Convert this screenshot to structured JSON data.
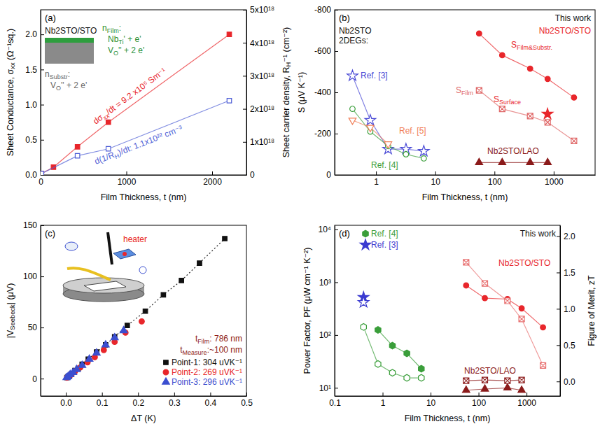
{
  "chart_data": [
    {
      "type": "scatter",
      "title": "(a)",
      "x_label": "Film Thickness, t (nm)",
      "y_label": {
        "text": "Sheet Conductance, σ",
        "sub": "xx",
        "tail": " (Ω⁻¹sq.)"
      },
      "y2_label": {
        "text": "Sheet carrier density, R",
        "sub": "H",
        "tail": "⁻¹ (cm⁻²)"
      },
      "xlim": [
        0,
        2400
      ],
      "xticks": [
        0,
        1000,
        2000
      ],
      "ylim": [
        0,
        2.35
      ],
      "yticks": [
        {
          "value": 0,
          "label": "0.0"
        },
        0.5,
        {
          "value": 1,
          "label": "1.0"
        },
        1.5,
        {
          "value": 2,
          "label": "2.0"
        }
      ],
      "y2lim": [
        0,
        5e+18
      ],
      "y2ticks": [
        0,
        {
          "value": 1e+18,
          "label": "1x10¹⁸"
        },
        {
          "value": 2e+18,
          "label": "2x10¹⁸"
        },
        {
          "value": 3e+18,
          "label": "3x10¹⁸"
        },
        {
          "value": 4e+18,
          "label": "4x10¹⁸"
        },
        {
          "value": 5e+18,
          "label": "5x10¹⁸"
        }
      ],
      "series": [
        {
          "color": "#e8262b",
          "marker": "square",
          "line_style": "solid",
          "x": [
            10,
            150,
            430,
            790,
            2200
          ],
          "values": [
            0.02,
            0.11,
            0.4,
            0.75,
            2.0
          ]
        },
        {
          "color": "#4f5fd6",
          "marker": "open-square",
          "line_style": "solid",
          "axis": "y2",
          "x": [
            10,
            430,
            790,
            2200
          ],
          "values": [
            4e+16,
            5.8e+17,
            7.9e+17,
            2.25e+18
          ]
        }
      ],
      "annotations": [
        "Nb2STO/STO",
        {
          "text": "n",
          "sub": "Film",
          "tail": ":"
        },
        {
          "text": "Nb",
          "sub": "Ti",
          "tail": "' + e'"
        },
        {
          "text": "V",
          "sub": "O",
          "tail": "'' + 2 e'"
        },
        {
          "text": "n",
          "sub": "Substr",
          "tail": ":"
        },
        {
          "text": "V",
          "sub": "O",
          "tail": "'' + 2 e'"
        },
        {
          "text": "dσ",
          "sub": "xx",
          "tail": "/dt = 9.2 x10⁵ Sm⁻¹"
        },
        {
          "text": "d(1/R",
          "sub": "H",
          "tail": ")/dt: 1.1x10²² cm⁻³"
        }
      ]
    },
    {
      "type": "line",
      "title": "(b)",
      "log": "x",
      "x_label": "Film Thickness, t (nm)",
      "y_label": "S (μV K⁻¹)",
      "xlim": [
        0.2,
        5000
      ],
      "xticks": [
        1,
        10,
        100,
        1000
      ],
      "ylim": [
        0,
        -800
      ],
      "yticks": [
        -800,
        -600,
        -400,
        -200,
        0
      ],
      "series": [
        {
          "name": "Ref. [3]",
          "color": "#4b4bd6",
          "marker": "open-star",
          "line_style": "solid",
          "x": [
            0.4,
            0.8,
            1.6,
            3.2,
            6.4
          ],
          "values": [
            -480,
            -265,
            -125,
            -125,
            -115
          ]
        },
        {
          "name": "Ref. [4]",
          "color": "#3a9e3a",
          "marker": "open-circle",
          "line_style": "solid",
          "x": [
            0.4,
            0.8,
            1.6,
            3.2,
            6.4
          ],
          "values": [
            -320,
            -210,
            -140,
            -100,
            -80
          ]
        },
        {
          "name": "Ref. [5]",
          "color": "#f0805a",
          "marker": "open-triangle-down",
          "line_style": "solid",
          "x": [
            0.4,
            0.8,
            1.6
          ],
          "values": [
            -265,
            -230,
            -150
          ]
        },
        {
          "color": "#e8262b",
          "marker": "circle",
          "line_style": "solid",
          "x": [
            55,
            135,
            400,
            790,
            2200
          ],
          "values": [
            -685,
            -580,
            -515,
            -465,
            -375
          ]
        },
        {
          "color": "#e06868",
          "marker": "square-x",
          "line_style": "solid",
          "x": [
            55,
            135,
            400,
            790,
            2200
          ],
          "values": [
            -410,
            -320,
            -285,
            -255,
            -165
          ]
        },
        {
          "color": "#e8262b",
          "marker": "star",
          "line_style": "none",
          "x": [
            786
          ],
          "values": [
            -295
          ]
        },
        {
          "name": "Nb2STO/LAO",
          "color": "#8b1a1a",
          "marker": "triangle",
          "line_style": "solid",
          "x": [
            55,
            135,
            400,
            790
          ],
          "values": [
            -60,
            -60,
            -60,
            -60
          ]
        }
      ],
      "annotations": [
        "Nb2STO",
        "2DEGs:",
        "This work",
        "Nb2STO/STO",
        {
          "text": "S",
          "sub": "Film&Substr."
        },
        {
          "text": "S",
          "sub": "Film"
        },
        {
          "text": "S",
          "sub": "Surface"
        }
      ]
    },
    {
      "type": "scatter",
      "title": "(c)",
      "legend": "bottom-right",
      "x_label": "ΔT (K)",
      "y_label": {
        "text": "|V",
        "sub": "Seebeck",
        "tail": "| (μV)"
      },
      "xlim": [
        -0.07,
        0.5
      ],
      "xticks": [
        {
          "value": 0,
          "label": "0.0"
        },
        0.1,
        0.2,
        0.3,
        0.4,
        0.5
      ],
      "ylim": [
        -17,
        150
      ],
      "yticks": [
        0,
        50,
        100,
        150
      ],
      "series": [
        {
          "name": "Point-1: 304 uVK⁻¹",
          "color": "#111111",
          "marker": "square",
          "line_style": "dotted",
          "x": [
            0.003,
            0.006,
            0.01,
            0.016,
            0.025,
            0.034,
            0.045,
            0.062,
            0.085,
            0.11,
            0.135,
            0.17,
            0.22,
            0.27,
            0.32,
            0.37,
            0.44
          ],
          "values": [
            1,
            2,
            3,
            5,
            8,
            10,
            14,
            19,
            26,
            33,
            41,
            52,
            66,
            82,
            96,
            113,
            137
          ]
        },
        {
          "name": "Point-2: 269 uVK⁻¹",
          "color": "#e8262b",
          "marker": "circle",
          "x": [
            0.003,
            0.008,
            0.015,
            0.025,
            0.04,
            0.06,
            0.08,
            0.105,
            0.135,
            0.165,
            0.21
          ],
          "values": [
            1,
            2,
            4,
            7,
            11,
            16,
            21,
            28,
            36,
            45,
            56
          ]
        },
        {
          "name": "Point-3: 296 uVK⁻¹",
          "color": "#3b4fd0",
          "marker": "triangle",
          "x": [
            0.002,
            0.006,
            0.012,
            0.02,
            0.03,
            0.045,
            0.065,
            0.085,
            0.11,
            0.135,
            0.16
          ],
          "values": [
            1,
            2,
            4,
            6,
            9,
            13,
            19,
            25,
            33,
            40,
            47
          ]
        }
      ],
      "annotations": [
        {
          "text": "t",
          "sub": "Film",
          "tail": ": 786 nm"
        },
        {
          "text": "t",
          "sub": "Measure",
          "tail": ":~100 nm"
        },
        "heater"
      ]
    },
    {
      "type": "line",
      "title": "(d)",
      "log": true,
      "legend": "top-left",
      "x_label": "Film Thickness, t (nm)",
      "y_label": "Power Factor, PF (μW cm⁻¹ K⁻²)",
      "y2_label": "Figure of Merit, zT",
      "xlim": [
        0.1,
        5000
      ],
      "xticks": [
        0.1,
        1,
        10,
        100,
        1000
      ],
      "ylim": [
        7,
        12000
      ],
      "yticks": [
        {
          "value": 10,
          "label": "10¹"
        },
        {
          "value": 100,
          "label": "10²"
        },
        {
          "value": 1000,
          "label": "10³"
        },
        {
          "value": 10000,
          "label": "10⁴"
        }
      ],
      "y2lim": [
        -0.2,
        2.15
      ],
      "y2ticks": [
        {
          "value": 0,
          "label": "0.0"
        },
        0.5,
        {
          "value": 1,
          "label": "1.0"
        },
        1.5,
        {
          "value": 2,
          "label": "2.0"
        }
      ],
      "series": [
        {
          "name": "Ref. [4]",
          "color": "#3a9e3a",
          "marker": "hexagon",
          "line_style": "solid",
          "x": [
            0.8,
            1.6,
            3.2,
            6.4
          ],
          "values": [
            125,
            63,
            45,
            23
          ]
        },
        {
          "color": "#3a9e3a",
          "marker": "open-hexagon",
          "line_style": "solid",
          "axis": "y2",
          "x": [
            0.4,
            0.8,
            1.6,
            3.2,
            6.4
          ],
          "values": [
            0.75,
            0.24,
            0.12,
            0.05,
            0.05
          ]
        },
        {
          "name": "Ref. [3]",
          "color": "#3b3bd0",
          "marker": "star",
          "line_style": "none",
          "x": [
            0.4
          ],
          "values": [
            520
          ]
        },
        {
          "color": "#3b3bd0",
          "marker": "open-star",
          "line_style": "none",
          "axis": "y2",
          "x": [
            0.4
          ],
          "values": [
            1.09
          ]
        },
        {
          "color": "#e8262b",
          "marker": "circle",
          "line_style": "solid",
          "x": [
            55,
            135,
            400,
            790,
            2200
          ],
          "values": [
            870,
            500,
            480,
            320,
            140
          ]
        },
        {
          "color": "#e87070",
          "marker": "square-x",
          "line_style": "solid",
          "axis": "y2",
          "x": [
            55,
            135,
            400,
            790,
            2200
          ],
          "values": [
            1.64,
            1.35,
            1.11,
            0.86,
            0.22
          ]
        },
        {
          "color": "#8b1a1a",
          "marker": "triangle",
          "line_style": "solid",
          "x": [
            55,
            135,
            400,
            790
          ],
          "values": [
            9,
            9.5,
            10,
            9
          ]
        },
        {
          "color": "#8b1a1a",
          "marker": "square-x",
          "line_style": "solid",
          "axis": "y2",
          "x": [
            55,
            135,
            400,
            790
          ],
          "values": [
            0.01,
            0.02,
            0.01,
            0.02
          ]
        }
      ],
      "annotations": [
        "This work",
        "Nb2STO/STO",
        "Nb2STO/LAO"
      ]
    }
  ]
}
